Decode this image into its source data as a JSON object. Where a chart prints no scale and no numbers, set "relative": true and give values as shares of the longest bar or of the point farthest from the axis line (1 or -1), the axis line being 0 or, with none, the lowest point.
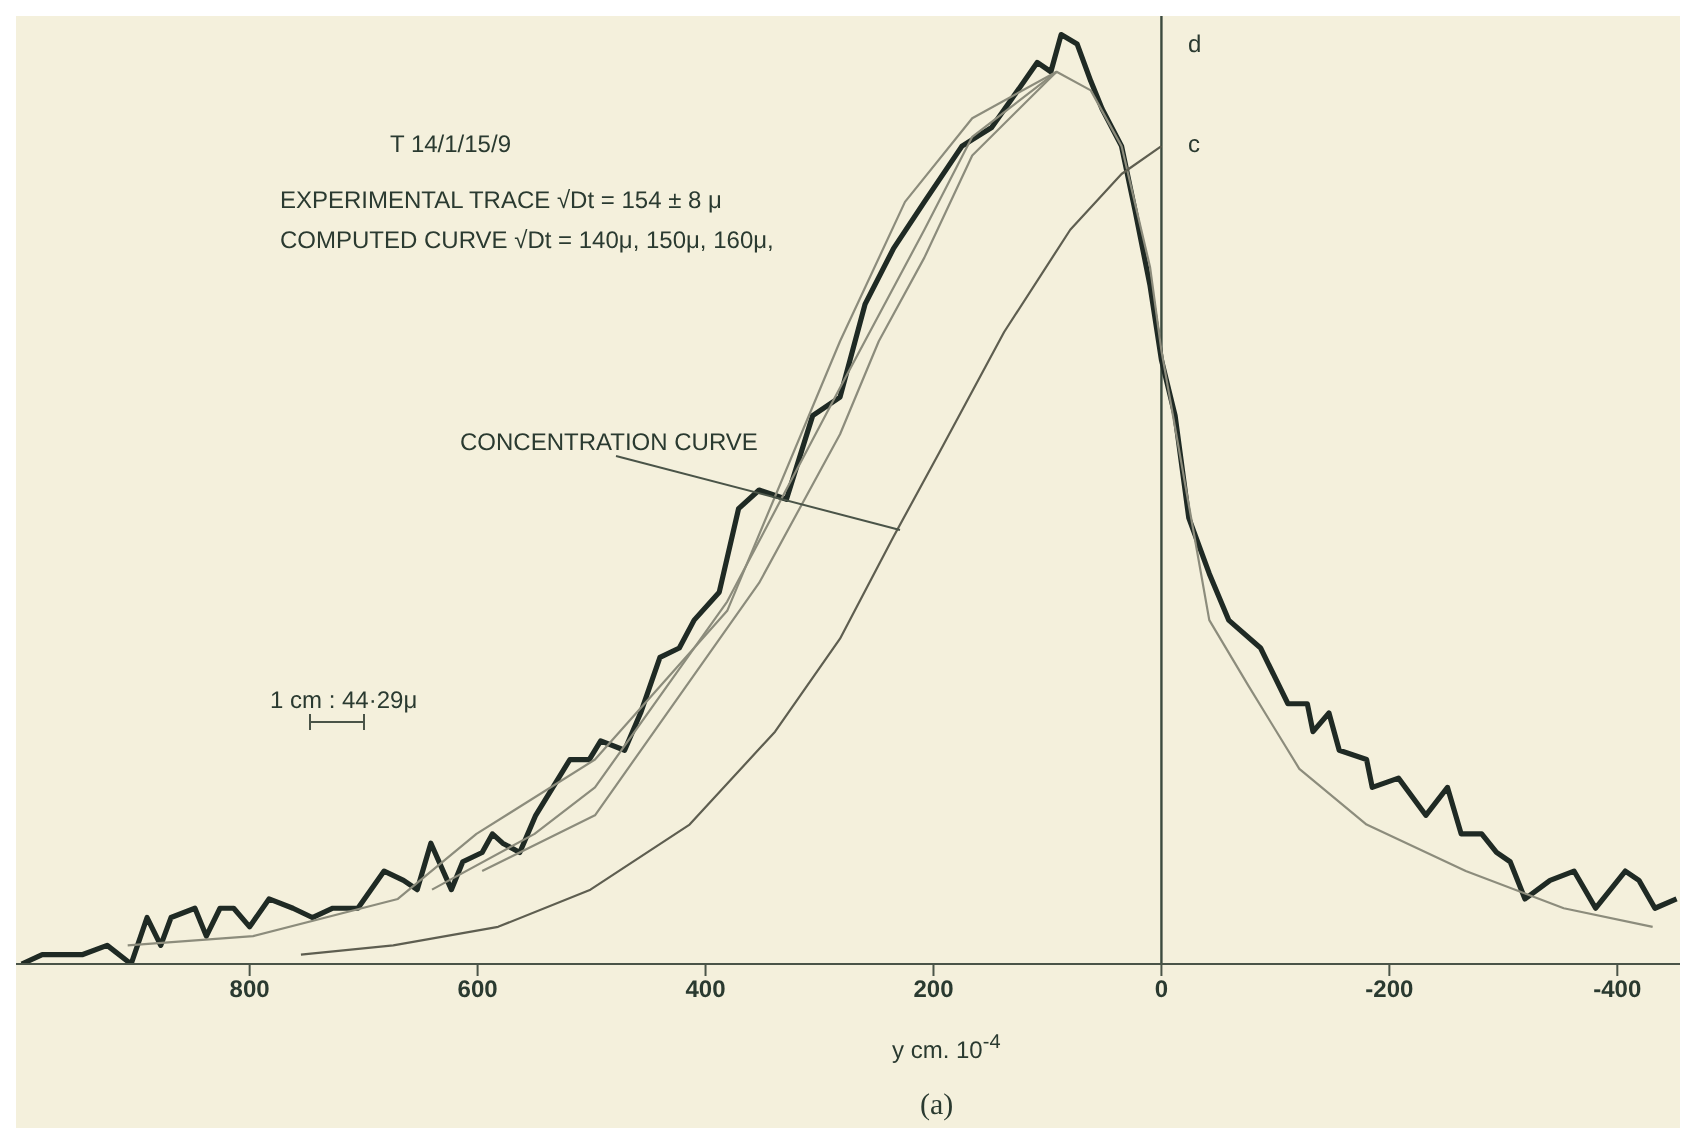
{
  "chart_data": {
    "type": "line",
    "relative": true,
    "marker": "none",
    "xlabel": "y cm. 10$^{-4}$",
    "xlim": [
      1005,
      -455
    ],
    "xticks": [
      800,
      600,
      400,
      200,
      0,
      -200,
      -400
    ],
    "ref_lines": [
      {
        "axis": "x",
        "value": 0,
        "color": "#3b4a3e"
      }
    ],
    "annotations": [
      "T 14/1/15/9",
      "EXPERIMENTAL TRACE √Dt = 154 ± 8 μ",
      "COMPUTED CURVE √Dt = 140μ, 150μ, 160μ,",
      "CONCENTRATION CURVE",
      "d",
      "c",
      "1 cm : 44·29μ",
      "(a)"
    ],
    "series": [
      {
        "color": "#1f2a24",
        "x": [
          1000,
          982,
          947,
          925,
          904,
          890,
          878,
          869,
          848,
          838,
          826,
          814,
          800,
          783,
          762,
          745,
          727,
          705,
          682,
          665,
          653,
          641,
          623,
          613,
          596,
          587,
          578,
          563,
          549,
          519,
          502,
          492,
          471,
          457,
          440,
          423,
          410,
          388,
          371,
          353,
          329,
          306,
          282,
          260,
          235,
          208,
          175,
          149,
          126,
          109,
          97,
          88,
          74,
          62,
          52,
          35,
          23,
          10,
          0,
          -12,
          -24,
          -42,
          -59,
          -87,
          -111,
          -128,
          -133,
          -147,
          -156,
          -180,
          -185,
          -208,
          -232,
          -251,
          -263,
          -281,
          -294,
          -306,
          -319,
          -341,
          -362,
          -381,
          -407,
          -419,
          -433,
          -452
        ],
        "values": [
          0,
          0.01,
          0.01,
          0.02,
          0,
          0.05,
          0.02,
          0.05,
          0.06,
          0.03,
          0.06,
          0.06,
          0.04,
          0.07,
          0.06,
          0.05,
          0.06,
          0.06,
          0.1,
          0.09,
          0.08,
          0.13,
          0.08,
          0.11,
          0.12,
          0.14,
          0.13,
          0.12,
          0.16,
          0.22,
          0.22,
          0.24,
          0.23,
          0.27,
          0.33,
          0.34,
          0.37,
          0.4,
          0.49,
          0.51,
          0.5,
          0.59,
          0.61,
          0.71,
          0.77,
          0.82,
          0.88,
          0.9,
          0.94,
          0.97,
          0.96,
          1,
          0.99,
          0.95,
          0.92,
          0.88,
          0.81,
          0.73,
          0.65,
          0.59,
          0.48,
          0.42,
          0.37,
          0.34,
          0.28,
          0.28,
          0.25,
          0.27,
          0.23,
          0.22,
          0.19,
          0.2,
          0.16,
          0.19,
          0.14,
          0.14,
          0.12,
          0.11,
          0.07,
          0.09,
          0.1,
          0.06,
          0.1,
          0.09,
          0.06,
          0.07
        ]
      },
      {
        "color": "#8c8c7c",
        "x": [
          907,
          797,
          670,
          601,
          497,
          381,
          282,
          225,
          166,
          92,
          62,
          35,
          10,
          0,
          -42,
          -76,
          -121,
          -180,
          -267,
          -353,
          -431
        ],
        "values": [
          0.02,
          0.03,
          0.07,
          0.14,
          0.22,
          0.38,
          0.67,
          0.82,
          0.91,
          0.96,
          0.94,
          0.88,
          0.75,
          0.66,
          0.37,
          0.3,
          0.21,
          0.15,
          0.1,
          0.06,
          0.04
        ]
      },
      {
        "color": "#8c8c7c",
        "x": [
          640,
          550,
          497,
          381,
          282,
          208,
          166,
          92
        ],
        "values": [
          0.08,
          0.14,
          0.19,
          0.39,
          0.62,
          0.79,
          0.89,
          0.96
        ]
      },
      {
        "color": "#8c8c7c",
        "x": [
          596,
          497,
          353,
          282,
          248,
          208,
          166,
          92
        ],
        "values": [
          0.1,
          0.16,
          0.41,
          0.57,
          0.67,
          0.76,
          0.87,
          0.96
        ]
      },
      {
        "color": "#5e5e50",
        "x": [
          755,
          674,
          582,
          501,
          414,
          339,
          282,
          235,
          195,
          138,
          80,
          35,
          0
        ],
        "values": [
          0.01,
          0.02,
          0.04,
          0.08,
          0.15,
          0.25,
          0.35,
          0.46,
          0.55,
          0.68,
          0.79,
          0.85,
          0.88
        ]
      }
    ]
  }
}
